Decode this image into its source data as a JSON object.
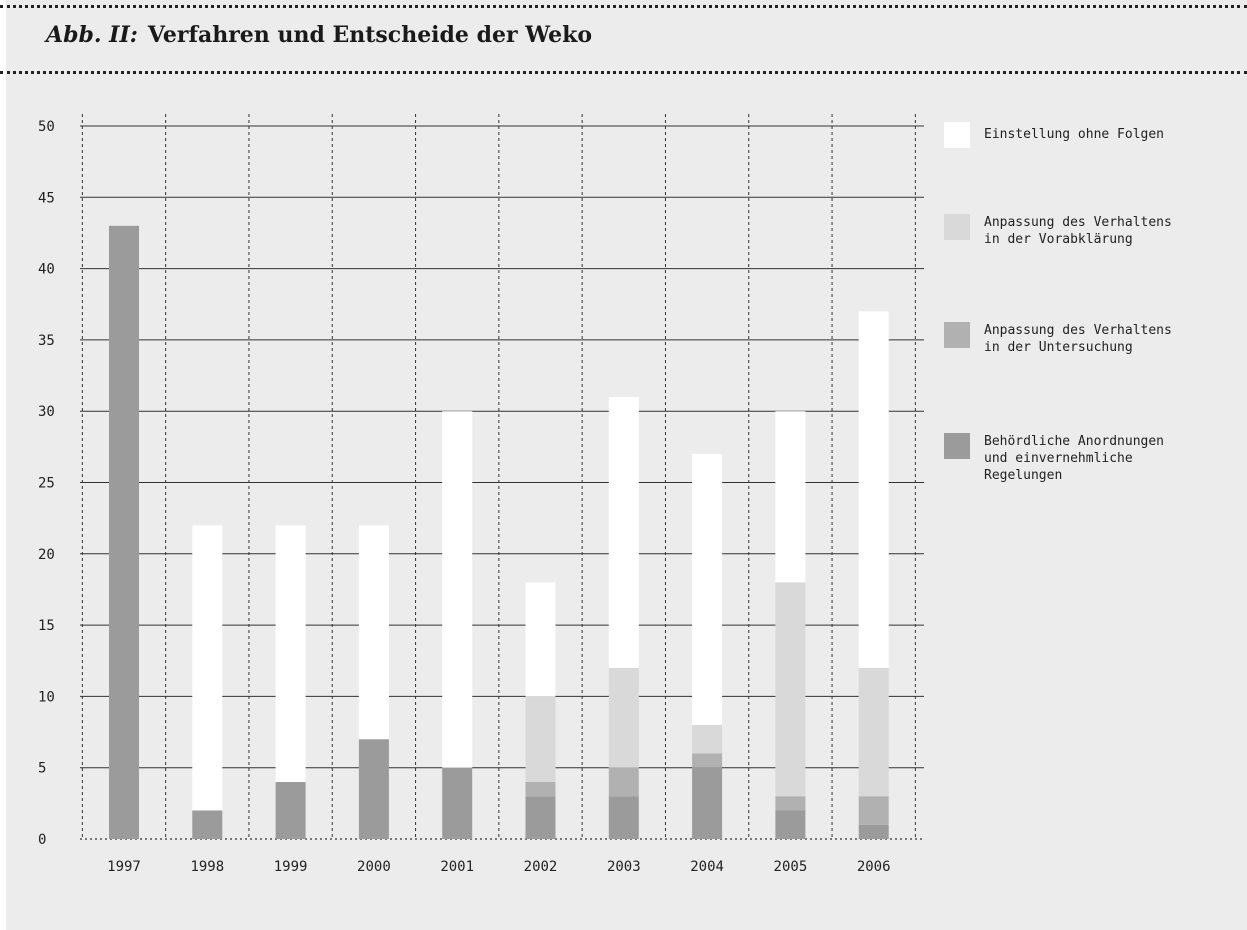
{
  "header": {
    "figure_label": "Abb. II:",
    "title": "Verfahren und Entscheide der Weko"
  },
  "legend": {
    "items": [
      {
        "label": "Einstellung ohne Folgen",
        "color": "#ffffff"
      },
      {
        "label": "Anpassung des Verhaltens\nin der Vorabklärung",
        "color": "#d8d9d8"
      },
      {
        "label": "Anpassung des Verhaltens\nin der Untersuchung",
        "color": "#b1b1b1"
      },
      {
        "label": "Behördliche Anordnungen\nund einvernehmliche\nRegelungen",
        "color": "#9b9b9b"
      }
    ]
  },
  "chart_data": {
    "type": "bar",
    "stacked": true,
    "title": "Verfahren und Entscheide der Weko",
    "xlabel": "",
    "ylabel": "",
    "ylim": [
      0,
      50
    ],
    "yticks": [
      0,
      5,
      10,
      15,
      20,
      25,
      30,
      35,
      40,
      45,
      50
    ],
    "grid": true,
    "legend_position": "right",
    "categories": [
      "1997",
      "1998",
      "1999",
      "2000",
      "2001",
      "2002",
      "2003",
      "2004",
      "2005",
      "2006"
    ],
    "series": [
      {
        "name": "Behördliche Anordnungen und einvernehmliche Regelungen",
        "color": "#9b9b9b",
        "values": [
          43,
          2,
          4,
          7,
          5,
          3,
          3,
          5,
          2,
          1
        ]
      },
      {
        "name": "Anpassung des Verhaltens in der Untersuchung",
        "color": "#b1b1b1",
        "values": [
          0,
          0,
          0,
          0,
          0,
          1,
          2,
          1,
          1,
          2
        ]
      },
      {
        "name": "Anpassung des Verhaltens in der Vorabklärung",
        "color": "#d8d9d8",
        "values": [
          0,
          0,
          0,
          0,
          0,
          6,
          7,
          2,
          15,
          9
        ]
      },
      {
        "name": "Einstellung ohne Folgen",
        "color": "#ffffff",
        "values": [
          0,
          20,
          18,
          15,
          25,
          8,
          19,
          19,
          12,
          25
        ]
      }
    ]
  }
}
